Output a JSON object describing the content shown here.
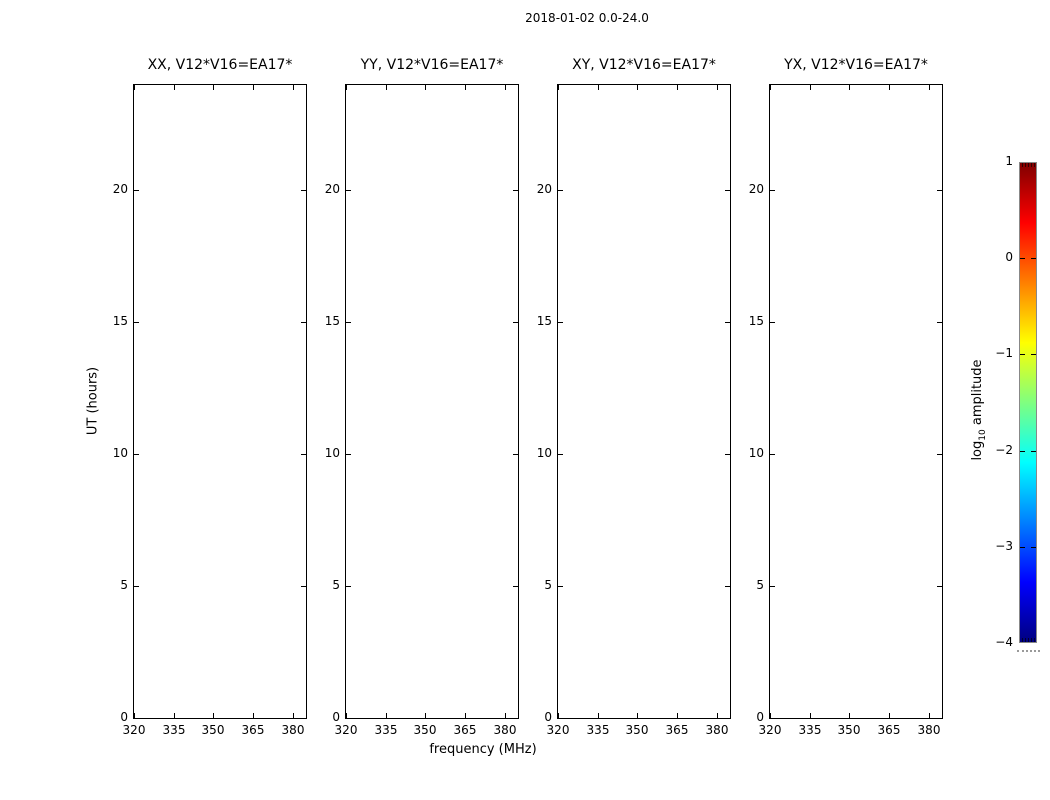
{
  "figure": {
    "title": "2018-01-02 0.0-24.0",
    "background": "#ffffff",
    "text_color": "#000000"
  },
  "chart_data": {
    "type": "heatmap",
    "title": "2018-01-02 0.0-24.0",
    "xlabel": "frequency (MHz)",
    "ylabel": "UT (hours)",
    "panels": [
      {
        "title": "XX, V12*V16=EA17*"
      },
      {
        "title": "YY, V12*V16=EA17*"
      },
      {
        "title": "XY, V12*V16=EA17*"
      },
      {
        "title": "YX, V12*V16=EA17*"
      }
    ],
    "panels_empty": true,
    "values": [],
    "x_ticks": [
      320,
      335,
      350,
      365,
      380
    ],
    "x_tick_labels": [
      "320",
      "335",
      "350",
      "365",
      "380"
    ],
    "xlim": [
      320,
      385
    ],
    "y_ticks": [
      0,
      5,
      10,
      15,
      20
    ],
    "y_tick_labels": [
      "0",
      "5",
      "10",
      "15",
      "20"
    ],
    "ylim": [
      0,
      24
    ],
    "grid": false,
    "colorbar": {
      "label_prefix": "log",
      "label_sub": "10",
      "label_suffix": " amplitude",
      "ticks": [
        1,
        0,
        -1,
        -2,
        -3,
        -4
      ],
      "tick_labels": [
        "1",
        "0",
        "−1",
        "−2",
        "−3",
        "−4"
      ],
      "vmin": -4,
      "vmax": 1,
      "colormap": "jet",
      "colormap_stops": [
        {
          "pos": 0.0,
          "color": "#000080"
        },
        {
          "pos": 0.125,
          "color": "#0000ff"
        },
        {
          "pos": 0.375,
          "color": "#00ffff"
        },
        {
          "pos": 0.625,
          "color": "#ffff00"
        },
        {
          "pos": 0.875,
          "color": "#ff0000"
        },
        {
          "pos": 1.0,
          "color": "#800000"
        }
      ]
    }
  }
}
